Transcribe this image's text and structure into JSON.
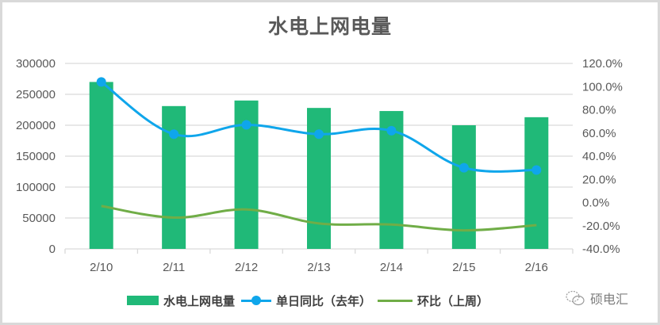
{
  "chart_data": {
    "type": "bar",
    "title": "水电上网电量",
    "categories": [
      "2/10",
      "2/11",
      "2/12",
      "2/13",
      "2/14",
      "2/15",
      "2/16"
    ],
    "series": [
      {
        "name": "水电上网电量",
        "type": "bar",
        "axis": "left",
        "color": "#20b978",
        "values": [
          270000,
          231000,
          240000,
          228000,
          223000,
          200000,
          213000
        ]
      },
      {
        "name": "单日同比（去年）",
        "type": "line",
        "axis": "right",
        "color": "#0fa6eb",
        "markers": true,
        "smooth": true,
        "values": [
          104.0,
          59.0,
          67.0,
          59.0,
          62.0,
          30.0,
          28.0
        ]
      },
      {
        "name": "环比（上周）",
        "type": "line",
        "axis": "right",
        "color": "#70ad47",
        "markers": false,
        "smooth": true,
        "values": [
          -3.0,
          -13.0,
          -6.0,
          -18.0,
          -19.0,
          -24.0,
          -19.5
        ]
      }
    ],
    "left_axis": {
      "ylim": [
        0,
        300000
      ],
      "ticks": [
        "0",
        "50000",
        "100000",
        "150000",
        "200000",
        "250000",
        "300000"
      ]
    },
    "right_axis": {
      "ylim": [
        -40,
        120
      ],
      "ticks": [
        "-40.0%",
        "-20.0%",
        "0.0%",
        "20.0%",
        "40.0%",
        "60.0%",
        "80.0%",
        "100.0%",
        "120.0%"
      ]
    },
    "xlabel": "",
    "ylabel": "",
    "grid": true,
    "legend_position": "bottom"
  },
  "legend": {
    "bar_label": "水电上网电量",
    "yoy_label": "单日同比（去年）",
    "wow_label": "环比（上周）"
  },
  "watermark": {
    "icon": "wechat-icon",
    "text": "硕电汇"
  }
}
